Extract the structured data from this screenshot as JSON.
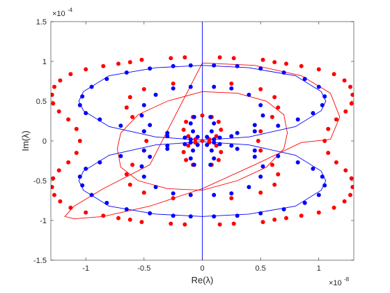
{
  "chart_data": {
    "type": "scatter",
    "title": "",
    "xlabel": "Re(λ)",
    "ylabel": "Im(λ)",
    "x_exponent_label": "×10",
    "x_exponent": "-8",
    "y_exponent_label": "×10",
    "y_exponent": "-4",
    "xlim": [
      -1.3,
      1.3
    ],
    "ylim": [
      -1.5,
      1.5
    ],
    "xticks": [
      -1,
      -0.5,
      0,
      0.5,
      1
    ],
    "xtick_labels": [
      "-1",
      "-0.5",
      "0",
      "0.5",
      "1"
    ],
    "yticks": [
      -1.5,
      -1,
      -0.5,
      0,
      0.5,
      1,
      1.5
    ],
    "ytick_labels": [
      "-1.5",
      "-1",
      "-0.5",
      "0",
      "0.5",
      "1",
      "1.5"
    ],
    "grid": false,
    "colors": {
      "red": "#ff0000",
      "blue": "#0000ff",
      "axis": "#262626"
    },
    "series": [
      {
        "style": "line",
        "color": "#ff0000",
        "closed": true,
        "x": [
          0,
          0.45,
          0.85,
          1.1,
          1.18,
          1.1,
          0.85,
          0.45,
          0,
          -0.45,
          -0.85,
          -1.1,
          -1.18,
          -1.1,
          -0.85,
          -0.45
        ],
        "y": [
          0.98,
          0.95,
          0.82,
          0.6,
          0.3,
          0.02,
          -0.02,
          -0.3,
          -0.6,
          -0.82,
          -0.95,
          -0.98,
          -0.95,
          -0.82,
          -0.6,
          -0.3
        ]
      },
      {
        "style": "line",
        "color": "#ff0000",
        "closed": true,
        "x": [
          0,
          0.3,
          0.55,
          0.7,
          0.73,
          0.7,
          0.55,
          0.3,
          0,
          -0.3,
          -0.55,
          -0.7,
          -0.73,
          -0.7,
          -0.55,
          -0.3
        ],
        "y": [
          0.62,
          0.6,
          0.5,
          0.33,
          0.1,
          -0.1,
          -0.33,
          -0.5,
          -0.62,
          -0.6,
          -0.5,
          -0.33,
          -0.1,
          0.1,
          0.33,
          0.5
        ]
      },
      {
        "style": "line",
        "color": "#0000ff",
        "closed": true,
        "x": [
          0,
          0.4,
          0.8,
          1.02,
          1.06,
          1.02,
          0.8,
          0.4,
          0,
          -0.4,
          -0.8,
          -1.02,
          -1.06,
          -1.02,
          -0.8,
          -0.4
        ],
        "y": [
          0.95,
          0.92,
          0.82,
          0.62,
          0.5,
          0.38,
          0.18,
          0.05,
          0.01,
          0.05,
          0.18,
          0.38,
          0.5,
          0.62,
          0.82,
          0.92
        ]
      },
      {
        "style": "line",
        "color": "#0000ff",
        "closed": true,
        "x": [
          0,
          0.4,
          0.8,
          1.02,
          1.06,
          1.02,
          0.8,
          0.4,
          0,
          -0.4,
          -0.8,
          -1.02,
          -1.06,
          -1.02,
          -0.8,
          -0.4
        ],
        "y": [
          -0.95,
          -0.92,
          -0.82,
          -0.62,
          -0.5,
          -0.38,
          -0.18,
          -0.05,
          -0.01,
          -0.05,
          -0.18,
          -0.38,
          -0.5,
          -0.62,
          -0.82,
          -0.92
        ]
      },
      {
        "style": "line",
        "color": "#0000ff",
        "closed": false,
        "x": [
          0,
          0
        ],
        "y": [
          -1.5,
          1.5
        ]
      },
      {
        "style": "dots",
        "color": "#ff0000",
        "x": [
          0.15,
          0.27,
          0.52,
          0.62,
          0.72,
          0.85,
          1.0,
          1.13,
          1.22,
          1.27,
          1.29,
          1.28,
          1.23,
          1.15,
          1.08,
          1.05,
          1.08,
          1.15,
          1.23,
          1.28,
          1.29,
          1.27,
          1.22,
          1.13,
          1.0,
          0.85,
          0.72,
          0.62,
          0.52,
          0.27,
          0.15,
          -0.15,
          -0.27,
          -0.52,
          -0.62,
          -0.72,
          -0.85,
          -1.0,
          -1.13,
          -1.22,
          -1.27,
          -1.29,
          -1.28,
          -1.23,
          -1.15,
          -1.08,
          -1.05,
          -1.08,
          -1.15,
          -1.23,
          -1.28,
          -1.29,
          -1.27,
          -1.22,
          -1.13,
          -1.0,
          -0.85,
          -0.72,
          -0.62,
          -0.52,
          -0.27,
          -0.15
        ],
        "y": [
          1.05,
          1.04,
          1.02,
          0.99,
          0.97,
          0.94,
          0.9,
          0.84,
          0.76,
          0.68,
          0.58,
          0.47,
          0.37,
          0.27,
          0.15,
          0.0,
          -0.15,
          -0.27,
          -0.37,
          -0.47,
          -0.58,
          -0.68,
          -0.76,
          -0.84,
          -0.9,
          -0.94,
          -0.97,
          -0.99,
          -1.02,
          -1.04,
          -1.05,
          -1.05,
          -1.04,
          -1.02,
          -0.99,
          -0.97,
          -0.94,
          -0.9,
          -0.84,
          -0.76,
          -0.68,
          -0.58,
          -0.47,
          -0.37,
          -0.27,
          -0.15,
          0.0,
          0.15,
          0.27,
          0.37,
          0.47,
          0.58,
          0.68,
          0.76,
          0.84,
          0.9,
          0.94,
          0.97,
          0.99,
          1.02,
          1.04,
          1.05
        ]
      },
      {
        "style": "dots",
        "color": "#ff0000",
        "x": [
          0.25,
          0.5,
          0.62,
          0.65,
          0.6,
          0.5,
          0.48,
          0.5,
          0.6,
          0.65,
          0.62,
          0.5,
          0.25,
          -0.25,
          -0.5,
          -0.62,
          -0.65,
          -0.6,
          -0.5,
          -0.48,
          -0.5,
          -0.6,
          -0.65,
          -0.62,
          -0.5,
          -0.25
        ],
        "y": [
          0.72,
          0.65,
          0.55,
          0.42,
          0.3,
          0.12,
          0.0,
          -0.12,
          -0.3,
          -0.42,
          -0.55,
          -0.65,
          -0.72,
          -0.72,
          -0.65,
          -0.55,
          -0.42,
          -0.3,
          -0.12,
          0.0,
          0.12,
          0.3,
          0.42,
          0.55,
          0.65,
          0.72
        ]
      },
      {
        "style": "dots",
        "color": "#ff0000",
        "x": [
          0.08,
          0.14,
          0.16,
          0.12,
          0.06,
          0.0,
          -0.06,
          -0.12,
          -0.16,
          -0.14,
          -0.08,
          0.0,
          0.08,
          0.14,
          0.16,
          0.12,
          0.06,
          -0.06,
          -0.12,
          -0.16,
          -0.14,
          -0.08
        ],
        "y": [
          0.3,
          0.24,
          0.14,
          0.06,
          0.02,
          0.0,
          0.02,
          0.06,
          0.14,
          0.24,
          0.3,
          0.32,
          -0.3,
          -0.24,
          -0.14,
          -0.06,
          -0.02,
          -0.02,
          -0.06,
          -0.14,
          -0.24,
          -0.3
        ]
      },
      {
        "style": "dots",
        "color": "#0000ff",
        "x": [
          0.1,
          0.3,
          0.5,
          0.7,
          0.88,
          1.0,
          1.05,
          1.03,
          0.95,
          0.82,
          0.65,
          0.45,
          0.25,
          0.1,
          -0.1,
          -0.3,
          -0.5,
          -0.7,
          -0.88,
          -1.0,
          -1.05,
          -1.03,
          -0.95,
          -0.82,
          -0.65,
          -0.45,
          -0.25,
          -0.1,
          0.1,
          0.3,
          0.5,
          0.7,
          0.88,
          1.0,
          1.05,
          1.03,
          0.95,
          0.82,
          0.65,
          0.45,
          0.25,
          0.1,
          -0.1,
          -0.3,
          -0.5,
          -0.7,
          -0.88,
          -1.0,
          -1.05,
          -1.03,
          -0.95,
          -0.82,
          -0.65,
          -0.45,
          -0.25,
          -0.1
        ],
        "y": [
          0.95,
          0.94,
          0.91,
          0.86,
          0.78,
          0.68,
          0.56,
          0.45,
          0.35,
          0.27,
          0.19,
          0.12,
          0.06,
          0.02,
          0.02,
          0.06,
          0.12,
          0.19,
          0.27,
          0.35,
          0.45,
          0.56,
          0.68,
          0.78,
          0.86,
          0.91,
          0.94,
          0.95,
          -0.95,
          -0.94,
          -0.91,
          -0.86,
          -0.78,
          -0.68,
          -0.56,
          -0.45,
          -0.35,
          -0.27,
          -0.19,
          -0.12,
          -0.06,
          -0.02,
          -0.02,
          -0.06,
          -0.12,
          -0.19,
          -0.27,
          -0.35,
          -0.45,
          -0.56,
          -0.68,
          -0.78,
          -0.86,
          -0.91,
          -0.94,
          -0.95
        ]
      },
      {
        "style": "dots",
        "color": "#0000ff",
        "x": [
          0.1,
          0.25,
          0.4,
          0.5,
          0.52,
          0.45,
          0.3,
          0.15,
          -0.15,
          -0.3,
          -0.45,
          -0.52,
          -0.5,
          -0.4,
          -0.25,
          -0.1,
          0.1,
          0.25,
          0.4,
          0.5,
          0.52,
          0.45,
          0.3,
          0.15,
          -0.15,
          -0.3,
          -0.45,
          -0.52,
          -0.5,
          -0.4,
          -0.25,
          -0.1
        ],
        "y": [
          0.68,
          0.66,
          0.58,
          0.45,
          0.32,
          0.2,
          0.1,
          0.04,
          0.04,
          0.1,
          0.2,
          0.32,
          0.45,
          0.58,
          0.66,
          0.68,
          -0.68,
          -0.66,
          -0.58,
          -0.45,
          -0.32,
          -0.2,
          -0.1,
          -0.04,
          -0.04,
          -0.1,
          -0.2,
          -0.32,
          -0.45,
          -0.58,
          -0.66,
          -0.68
        ]
      },
      {
        "style": "dots",
        "color": "#0000ff",
        "x": [
          0.07,
          0.1,
          0.08,
          0.04,
          -0.04,
          -0.08,
          -0.1,
          -0.07,
          0.07,
          0.1,
          0.08,
          0.04,
          -0.04,
          -0.08,
          -0.1,
          -0.07
        ],
        "y": [
          0.3,
          0.22,
          0.12,
          0.05,
          0.05,
          0.12,
          0.22,
          0.3,
          -0.3,
          -0.22,
          -0.12,
          -0.05,
          -0.05,
          -0.12,
          -0.22,
          -0.3
        ]
      }
    ]
  }
}
